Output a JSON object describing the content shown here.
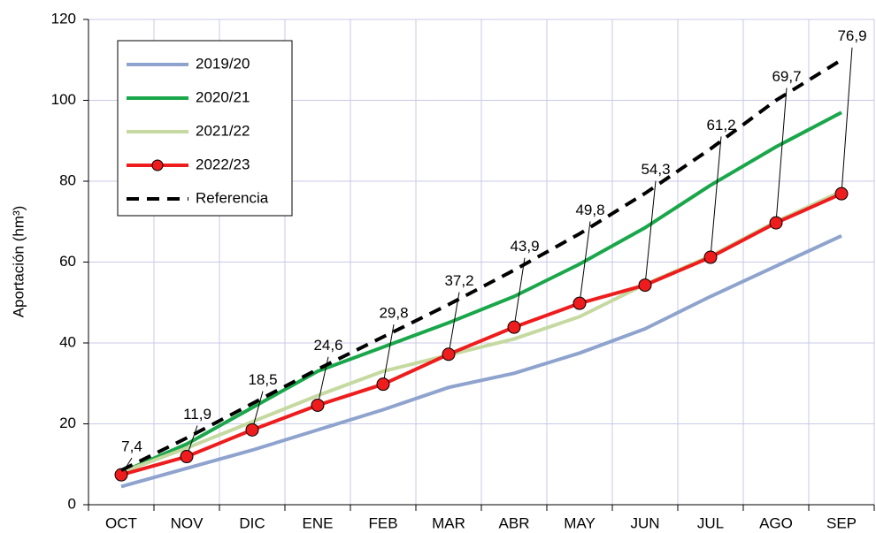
{
  "chart_data": {
    "type": "line",
    "y_label": "Aportación (hm³)",
    "categories": [
      "OCT",
      "NOV",
      "DIC",
      "ENE",
      "FEB",
      "MAR",
      "ABR",
      "MAY",
      "JUN",
      "JUL",
      "AGO",
      "SEP"
    ],
    "ylim": [
      0,
      120
    ],
    "yticks": [
      0,
      20,
      40,
      60,
      80,
      100,
      120
    ],
    "grid": true,
    "legend": "upper left",
    "series": [
      {
        "name": "2019/20",
        "color": "#8ea3cd",
        "values": [
          4.5,
          9,
          13.5,
          18.5,
          23.5,
          29,
          32.5,
          37.5,
          43.5,
          51.5,
          59,
          66.5
        ]
      },
      {
        "name": "2020/21",
        "color": "#1aa64a",
        "values": [
          8,
          15,
          24,
          33,
          39,
          45,
          51.5,
          59.5,
          68.5,
          79,
          88.5,
          97
        ]
      },
      {
        "name": "2021/22",
        "color": "#c5d9a0",
        "values": [
          8,
          14,
          20.5,
          27,
          33,
          37,
          41,
          46.5,
          54.5,
          61.5,
          70,
          77.5
        ]
      },
      {
        "name": "2022/23",
        "color": "#ee1c1c",
        "marker": true,
        "values": [
          7.4,
          11.9,
          18.5,
          24.6,
          29.8,
          37.2,
          43.9,
          49.8,
          54.3,
          61.2,
          69.7,
          76.9
        ],
        "value_labels": [
          "7,4",
          "11,9",
          "18,5",
          "24,6",
          "29,8",
          "37,2",
          "43,9",
          "49,8",
          "54,3",
          "61,2",
          "69,7",
          "76,9"
        ]
      },
      {
        "name": "Referencia",
        "color": "#000000",
        "dashed": true,
        "values": [
          8.5,
          16.5,
          25,
          33.5,
          41.5,
          49.5,
          58,
          67,
          77,
          88,
          100,
          110
        ]
      }
    ]
  }
}
